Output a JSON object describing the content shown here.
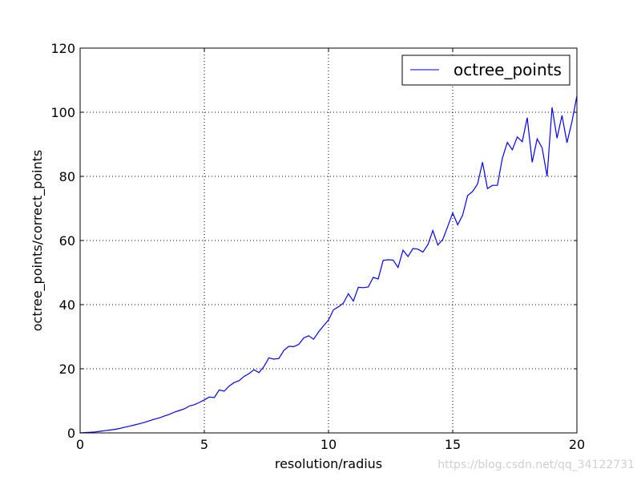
{
  "chart_data": {
    "type": "line",
    "title": "",
    "xlabel": "resolution/radius",
    "ylabel": "octree_points/correct_points",
    "xlim": [
      0,
      20
    ],
    "ylim": [
      0,
      120
    ],
    "xticks": [
      0,
      5,
      10,
      15,
      20
    ],
    "yticks": [
      0,
      20,
      40,
      60,
      80,
      100,
      120
    ],
    "grid": true,
    "legend": {
      "placement": "top-right",
      "entries": [
        "octree_points"
      ]
    },
    "series": [
      {
        "name": "octree_points",
        "color": "#0000ff",
        "x": [
          0.0,
          0.2,
          0.4,
          0.6,
          0.8,
          1.0,
          1.2,
          1.4,
          1.6,
          1.8,
          2.0,
          2.2,
          2.4,
          2.6,
          2.8,
          3.0,
          3.2,
          3.4,
          3.6,
          3.8,
          4.0,
          4.2,
          4.4,
          4.6,
          4.8,
          5.0,
          5.2,
          5.4,
          5.6,
          5.8,
          6.0,
          6.2,
          6.4,
          6.6,
          6.8,
          7.0,
          7.2,
          7.4,
          7.6,
          7.8,
          8.0,
          8.2,
          8.4,
          8.6,
          8.8,
          9.0,
          9.2,
          9.4,
          9.6,
          9.8,
          10.0,
          10.2,
          10.4,
          10.6,
          10.8,
          11.0,
          11.2,
          11.4,
          11.6,
          11.8,
          12.0,
          12.2,
          12.4,
          12.6,
          12.8,
          13.0,
          13.2,
          13.4,
          13.6,
          13.8,
          14.0,
          14.2,
          14.4,
          14.6,
          14.8,
          15.0,
          15.2,
          15.4,
          15.6,
          15.8,
          16.0,
          16.2,
          16.4,
          16.6,
          16.8,
          17.0,
          17.2,
          17.4,
          17.6,
          17.8,
          18.0,
          18.2,
          18.4,
          18.6,
          18.8,
          19.0,
          19.2,
          19.4,
          19.6,
          19.8,
          20.0
        ],
        "values": [
          0.0,
          0.1,
          0.2,
          0.3,
          0.5,
          0.7,
          0.9,
          1.1,
          1.4,
          1.8,
          2.1,
          2.5,
          2.9,
          3.3,
          3.8,
          4.3,
          4.7,
          5.3,
          5.8,
          6.5,
          7.0,
          7.5,
          8.4,
          8.8,
          9.5,
          10.3,
          11.2,
          11.0,
          13.4,
          13.0,
          14.6,
          15.7,
          16.3,
          17.6,
          18.5,
          19.7,
          18.8,
          20.7,
          23.4,
          23.0,
          23.2,
          25.7,
          27.0,
          26.9,
          27.6,
          29.6,
          30.3,
          29.2,
          31.5,
          33.4,
          35.2,
          38.4,
          39.3,
          40.5,
          43.4,
          41.1,
          45.4,
          45.3,
          45.5,
          48.5,
          48.0,
          53.8,
          54.0,
          53.9,
          51.6,
          57.0,
          55.0,
          57.5,
          57.3,
          56.4,
          58.7,
          63.1,
          58.6,
          60.3,
          64.4,
          68.6,
          64.9,
          67.9,
          74.0,
          75.3,
          77.6,
          84.4,
          76.2,
          77.2,
          77.2,
          85.7,
          90.6,
          88.3,
          92.3,
          90.8,
          98.3,
          84.4,
          91.7,
          88.9,
          80.0,
          101.5,
          91.9,
          99.0,
          90.5,
          97.0,
          105.1
        ]
      }
    ]
  },
  "watermark": "https://blog.csdn.net/qq_34122731"
}
